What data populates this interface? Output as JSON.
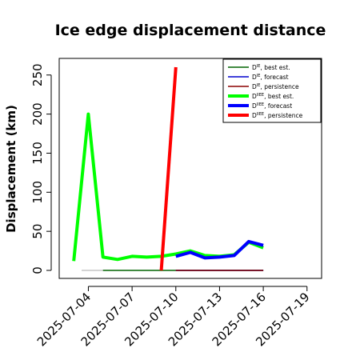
{
  "chart_data": {
    "type": "line",
    "title": "Ice edge displacement distance",
    "ylabel": "Displacement (km)",
    "xlabel": "",
    "xlim": [
      "2025-07-02",
      "2025-07-20"
    ],
    "ylim": [
      0,
      260
    ],
    "y_ticks": [
      0,
      50,
      100,
      150,
      200,
      250
    ],
    "x_ticks": [
      "2025-07-04",
      "2025-07-07",
      "2025-07-10",
      "2025-07-13",
      "2025-07-16",
      "2025-07-19"
    ],
    "highlighted_x_tick": "2025-07-10",
    "highlight_color": "#228B22",
    "legend_position": "top-right",
    "series": [
      {
        "name": "D^IE, best est.",
        "color": "#006400",
        "width": 1.4,
        "x": [
          "2025-07-05",
          "2025-07-16"
        ],
        "y": [
          0,
          0
        ]
      },
      {
        "name": "D^IE, forecast",
        "color": "#0000cd",
        "width": 1.4,
        "x": [
          "2025-07-10",
          "2025-07-16"
        ],
        "y": [
          0,
          0
        ]
      },
      {
        "name": "D^IE, persistence",
        "color": "#8b0000",
        "width": 1.4,
        "x": [
          "2025-07-10",
          "2025-07-16"
        ],
        "y": [
          0,
          0
        ]
      },
      {
        "name": "D^IIEE, best est.",
        "color": "#00ff00",
        "width": 4,
        "x": [
          "2025-07-03",
          "2025-07-04",
          "2025-07-05",
          "2025-07-06",
          "2025-07-07",
          "2025-07-08",
          "2025-07-09",
          "2025-07-10",
          "2025-07-11",
          "2025-07-12",
          "2025-07-13",
          "2025-07-14",
          "2025-07-15",
          "2025-07-16"
        ],
        "y": [
          12,
          200,
          17,
          14,
          18,
          17,
          18,
          21,
          25,
          19,
          18,
          20,
          36,
          29
        ]
      },
      {
        "name": "D^IIEE, forecast",
        "color": "#0000ff",
        "width": 4,
        "x": [
          "2025-07-10",
          "2025-07-11",
          "2025-07-12",
          "2025-07-13",
          "2025-07-14",
          "2025-07-15",
          "2025-07-16"
        ],
        "y": [
          18,
          23,
          16,
          17,
          19,
          37,
          32
        ]
      },
      {
        "name": "D^IIEE, persistence",
        "color": "#ff0000",
        "width": 4,
        "x": [
          "2025-07-09",
          "2025-07-10"
        ],
        "y": [
          0,
          260
        ]
      }
    ],
    "reference_line": {
      "y": 0,
      "x": [
        "2025-07-02",
        "2025-07-16"
      ],
      "color": "#aaaaaa"
    }
  }
}
